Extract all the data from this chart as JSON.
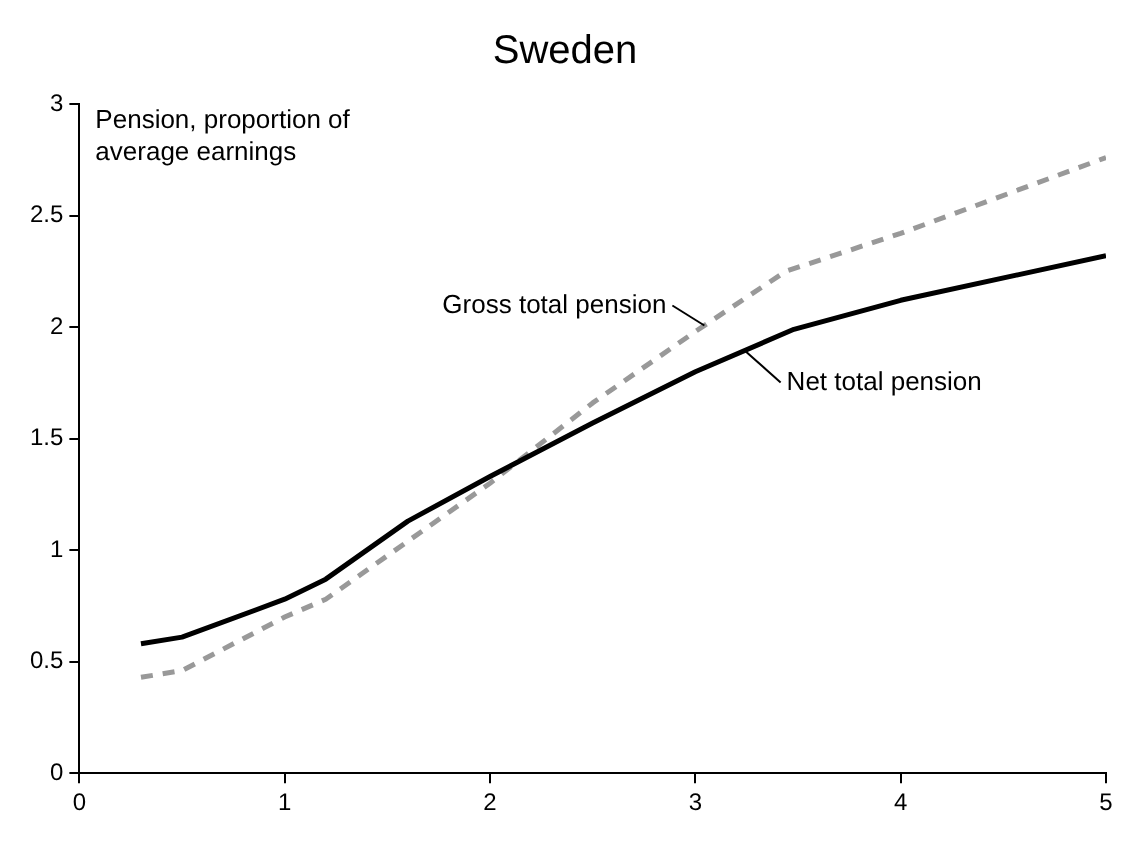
{
  "chart_data": {
    "type": "line",
    "title": "Sweden",
    "ylabel": "Pension, proportion of average earnings",
    "xlim": [
      0,
      5
    ],
    "xticks": [
      0,
      1,
      2,
      3,
      4,
      5
    ],
    "ylim": [
      0,
      3
    ],
    "yticks": [
      0,
      0.5,
      1,
      1.5,
      2,
      2.5,
      3
    ],
    "grid": false,
    "marker": "none",
    "series": [
      {
        "name": "Net total pension",
        "color": "#000000",
        "line_style": "solid",
        "x": [
          0.3,
          0.5,
          1,
          1.2,
          1.6,
          2,
          2.5,
          3,
          3.48,
          4,
          5
        ],
        "values": [
          0.58,
          0.61,
          0.78,
          0.87,
          1.13,
          1.33,
          1.57,
          1.8,
          1.99,
          2.12,
          2.32
        ]
      },
      {
        "name": "Gross total pension",
        "color": "#999999",
        "line_style": "dashed",
        "x": [
          0.3,
          0.5,
          1,
          1.2,
          1.6,
          2,
          2.5,
          3,
          3.44,
          4,
          5
        ],
        "values": [
          0.43,
          0.46,
          0.7,
          0.78,
          1.04,
          1.3,
          1.66,
          1.98,
          2.25,
          2.42,
          2.76
        ]
      }
    ]
  }
}
